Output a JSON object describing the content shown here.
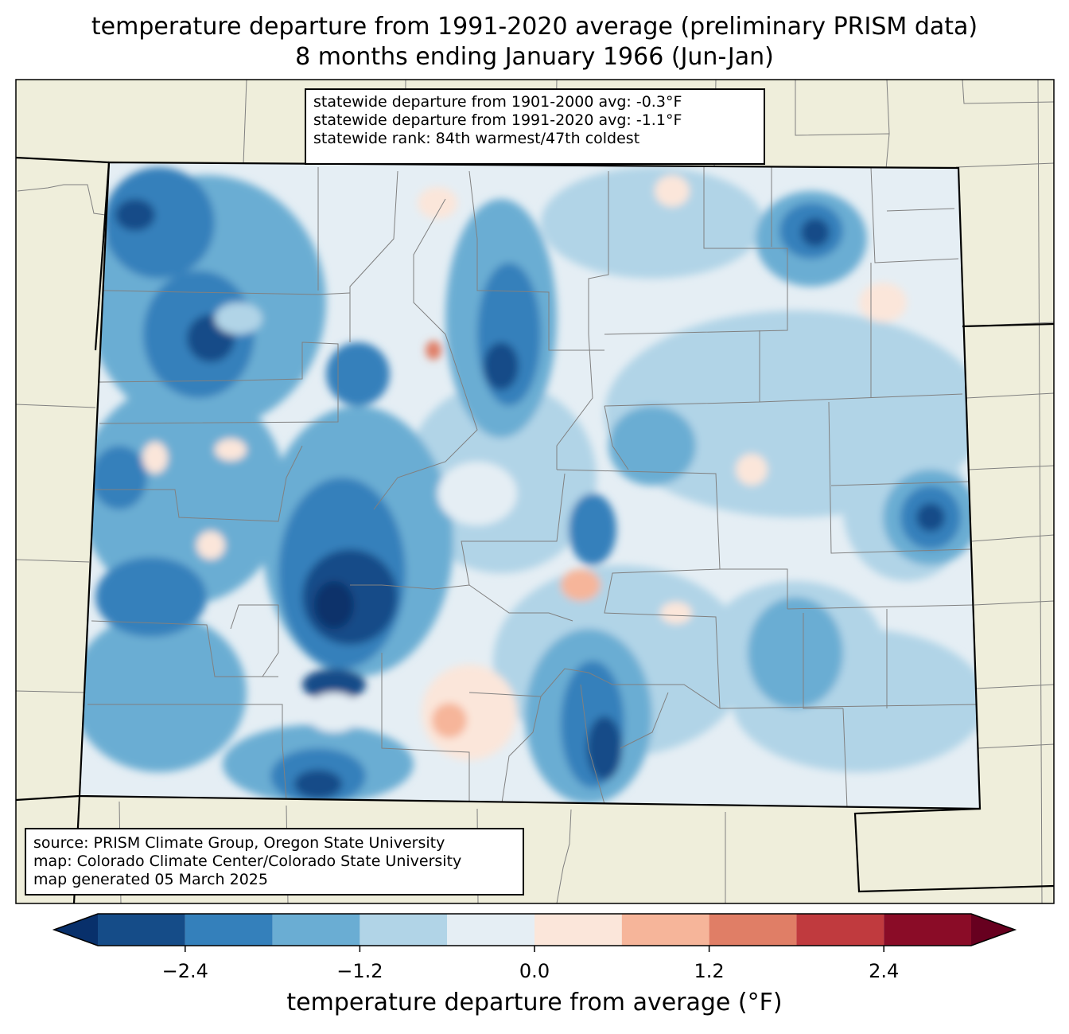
{
  "title": {
    "line1": "temperature departure from 1991-2020 average (preliminary PRISM data)",
    "line2": "8 months ending January 1966 (Jun-Jan)"
  },
  "stats": {
    "line1": "statewide departure from 1901-2000 avg: -0.3°F",
    "line2": "statewide departure from 1991-2020 avg: -1.1°F",
    "line3": "statewide rank: 84th warmest/47th coldest"
  },
  "source": {
    "line1": "source: PRISM Climate Group, Oregon State University",
    "line2": "map: Colorado Climate Center/Colorado State University",
    "line3": "map generated 05 March 2025"
  },
  "colorbar": {
    "title": "temperature departure from average (°F)",
    "ticks": [
      "−2.4",
      "−1.2",
      "0.0",
      "1.2",
      "2.4"
    ],
    "bin_edges": [
      -3.0,
      -2.4,
      -1.8,
      -1.2,
      -0.6,
      0.0,
      0.6,
      1.2,
      1.8,
      2.4,
      3.0
    ],
    "colors": [
      "#154c88",
      "#3480bb",
      "#6aadd3",
      "#b1d4e7",
      "#e5eef4",
      "#fbe6da",
      "#f6b59a",
      "#e07e66",
      "#c03a3e",
      "#8a0c27"
    ],
    "under_color": "#08306b",
    "over_color": "#67001f"
  },
  "colors": {
    "land": "#efeedb",
    "state_border": "#000000",
    "county_border": "#808080"
  }
}
